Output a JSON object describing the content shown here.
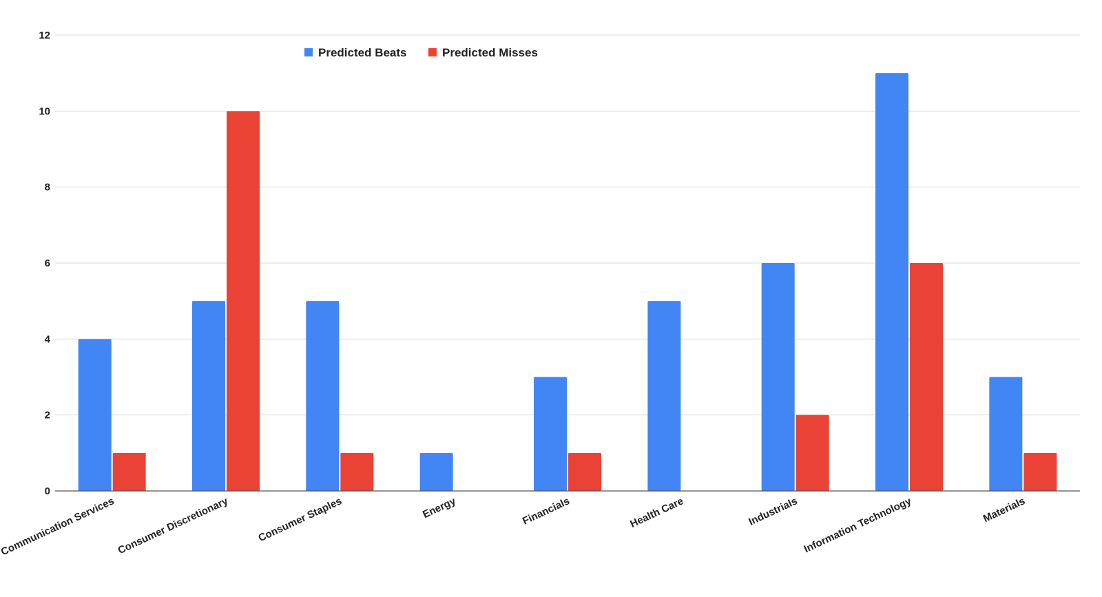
{
  "chart_data": {
    "type": "bar",
    "title": "",
    "xlabel": "",
    "ylabel": "",
    "ylim": [
      0,
      12
    ],
    "yticks": [
      0,
      2,
      4,
      6,
      8,
      10,
      12
    ],
    "grid": true,
    "legend_position": "top-left",
    "categories": [
      "Communication Services",
      "Consumer Discretionary",
      "Consumer Staples",
      "Energy",
      "Financials",
      "Health Care",
      "Industrials",
      "Information Technology",
      "Materials"
    ],
    "series": [
      {
        "name": "Predicted Beats",
        "color": "#4285f4",
        "values": [
          4,
          5,
          5,
          1,
          3,
          5,
          6,
          11,
          3
        ]
      },
      {
        "name": "Predicted Misses",
        "color": "#ea4335",
        "values": [
          1,
          10,
          1,
          0,
          1,
          0,
          2,
          6,
          1
        ]
      }
    ]
  }
}
